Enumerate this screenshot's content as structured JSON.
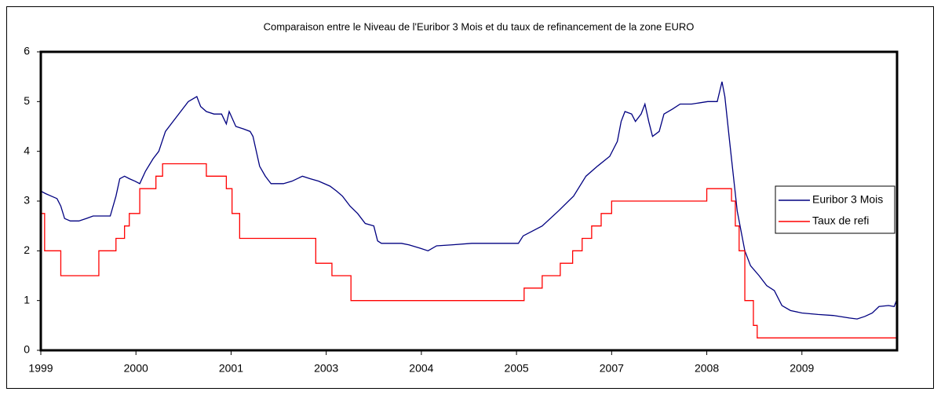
{
  "chart_data": {
    "type": "line",
    "title": "Comparaison entre le Niveau de l'Euribor 3 Mois et du taux de refinancement de la zone EURO",
    "xlim": [
      0,
      9
    ],
    "xticks": [
      {
        "value": 0,
        "label": "1999"
      },
      {
        "value": 1,
        "label": "2000"
      },
      {
        "value": 2,
        "label": "2001"
      },
      {
        "value": 3,
        "label": "2003"
      },
      {
        "value": 4,
        "label": "2004"
      },
      {
        "value": 5,
        "label": "2005"
      },
      {
        "value": 6,
        "label": "2007"
      },
      {
        "value": 7,
        "label": "2008"
      },
      {
        "value": 8,
        "label": "2009"
      }
    ],
    "ylim": [
      0,
      6
    ],
    "yticks": [
      0,
      1,
      2,
      3,
      4,
      5,
      6
    ],
    "grid": false,
    "legend": "right",
    "series": [
      {
        "name": "Euribor 3 Mois",
        "color": "#000080",
        "step": false,
        "x": [
          0,
          0.05,
          0.11,
          0.17,
          0.21,
          0.25,
          0.31,
          0.4,
          0.48,
          0.55,
          0.73,
          0.79,
          0.83,
          0.88,
          0.93,
          0.99,
          1.04,
          1.1,
          1.18,
          1.24,
          1.31,
          1.39,
          1.47,
          1.55,
          1.64,
          1.68,
          1.74,
          1.82,
          1.9,
          1.95,
          1.98,
          2.05,
          2.13,
          2.2,
          2.23,
          2.3,
          2.36,
          2.42,
          2.55,
          2.64,
          2.75,
          2.83,
          2.92,
          3.04,
          3.11,
          3.17,
          3.25,
          3.33,
          3.41,
          3.5,
          3.54,
          3.58,
          3.79,
          3.87,
          3.99,
          4.07,
          4.16,
          4.32,
          4.53,
          4.78,
          5.02,
          5.07,
          5.27,
          5.44,
          5.6,
          5.73,
          5.85,
          5.98,
          6.06,
          6.1,
          6.14,
          6.21,
          6.25,
          6.31,
          6.35,
          6.39,
          6.43,
          6.5,
          6.55,
          6.64,
          6.72,
          6.84,
          7.01,
          7.11,
          7.16,
          7.19,
          7.24,
          7.28,
          7.32,
          7.36,
          7.4,
          7.46,
          7.55,
          7.63,
          7.71,
          7.79,
          7.88,
          8.0,
          8.17,
          8.33,
          8.5,
          8.58,
          8.66,
          8.74,
          8.81,
          8.91,
          8.97,
          9
        ],
        "values": [
          3.2,
          3.15,
          3.1,
          3.05,
          2.9,
          2.65,
          2.6,
          2.6,
          2.65,
          2.7,
          2.7,
          3.1,
          3.45,
          3.5,
          3.45,
          3.4,
          3.35,
          3.6,
          3.85,
          4.0,
          4.4,
          4.6,
          4.8,
          5.0,
          5.1,
          4.9,
          4.8,
          4.75,
          4.75,
          4.55,
          4.8,
          4.5,
          4.45,
          4.4,
          4.3,
          3.7,
          3.5,
          3.35,
          3.35,
          3.4,
          3.5,
          3.45,
          3.4,
          3.3,
          3.2,
          3.1,
          2.9,
          2.75,
          2.55,
          2.5,
          2.2,
          2.15,
          2.15,
          2.12,
          2.05,
          2.0,
          2.1,
          2.12,
          2.15,
          2.15,
          2.15,
          2.3,
          2.5,
          2.8,
          3.1,
          3.5,
          3.7,
          3.9,
          4.2,
          4.6,
          4.8,
          4.75,
          4.6,
          4.75,
          4.95,
          4.6,
          4.3,
          4.4,
          4.75,
          4.85,
          4.95,
          4.95,
          5.0,
          5.0,
          5.4,
          5.1,
          4.2,
          3.5,
          2.8,
          2.4,
          2.0,
          1.7,
          1.5,
          1.3,
          1.2,
          0.9,
          0.8,
          0.75,
          0.72,
          0.7,
          0.65,
          0.63,
          0.68,
          0.75,
          0.88,
          0.9,
          0.88,
          1.03
        ]
      },
      {
        "name": "Taux de refi",
        "color": "#ff0000",
        "step": true,
        "x": [
          0,
          0.04,
          0.21,
          0.61,
          0.79,
          0.88,
          0.93,
          1.04,
          1.21,
          1.28,
          1.74,
          1.95,
          2.01,
          2.09,
          2.89,
          3.06,
          3.26,
          5.08,
          5.27,
          5.46,
          5.59,
          5.69,
          5.79,
          5.89,
          6.0,
          7.0,
          7.26,
          7.3,
          7.34,
          7.4,
          7.49,
          7.53,
          9
        ],
        "values": [
          2.75,
          2.0,
          1.5,
          2.0,
          2.25,
          2.5,
          2.75,
          3.25,
          3.5,
          3.75,
          3.5,
          3.25,
          2.75,
          2.25,
          1.75,
          1.5,
          1.0,
          1.25,
          1.5,
          1.75,
          2.0,
          2.25,
          2.5,
          2.75,
          3.0,
          3.25,
          3.0,
          2.5,
          2.0,
          1.0,
          0.5,
          0.25,
          0.25
        ]
      }
    ]
  }
}
